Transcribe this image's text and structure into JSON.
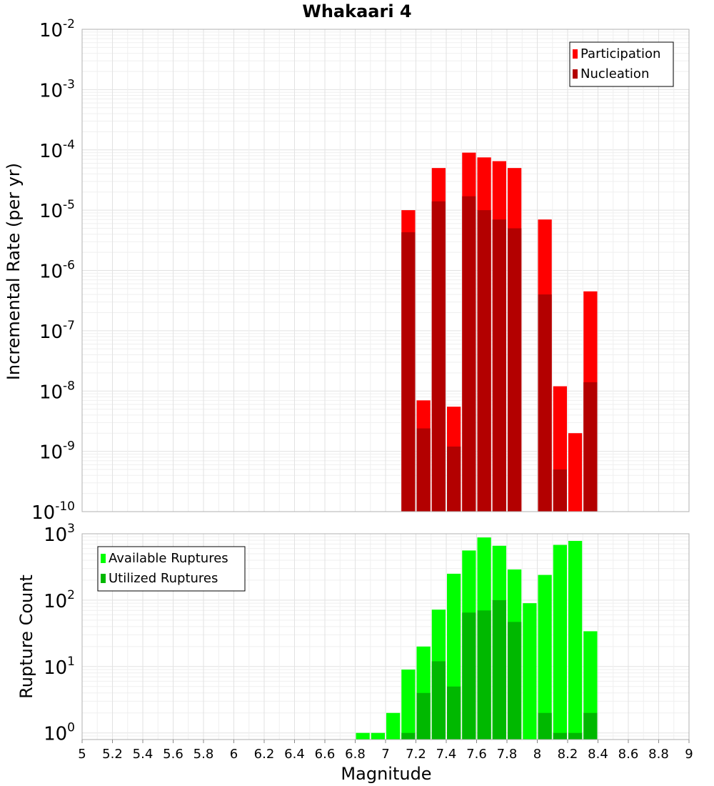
{
  "chart_data": [
    {
      "type": "bar",
      "id": "rate-panel",
      "title": "Whakaari 4",
      "xlabel": "",
      "ylabel": "Incremental Rate (per yr)",
      "yscale": "log",
      "ylim_exp": [
        -10,
        -2
      ],
      "xlim": [
        5,
        9
      ],
      "legend_position": "top-right",
      "colors": {
        "participation": "#ff0000",
        "nucleation": "#b30000"
      },
      "legend": [
        "Participation",
        "Nucleation"
      ],
      "ytick_labels": [
        {
          "base": "10",
          "exp": "-10"
        },
        {
          "base": "10",
          "exp": "-9"
        },
        {
          "base": "10",
          "exp": "-8"
        },
        {
          "base": "10",
          "exp": "-7"
        },
        {
          "base": "10",
          "exp": "-6"
        },
        {
          "base": "10",
          "exp": "-5"
        },
        {
          "base": "10",
          "exp": "-4"
        },
        {
          "base": "10",
          "exp": "-3"
        },
        {
          "base": "10",
          "exp": "-2"
        }
      ],
      "x": [
        7.15,
        7.25,
        7.35,
        7.45,
        7.55,
        7.65,
        7.75,
        7.85,
        8.05,
        8.15,
        8.25,
        8.35
      ],
      "series": [
        {
          "name": "Participation",
          "values": [
            1e-05,
            7e-09,
            5e-05,
            5.5e-09,
            9e-05,
            7.5e-05,
            6.5e-05,
            5e-05,
            7e-06,
            1.2e-08,
            2e-09,
            4.5e-07
          ]
        },
        {
          "name": "Nucleation",
          "values": [
            4.3e-06,
            2.4e-09,
            1.4e-05,
            1.2e-09,
            1.7e-05,
            1e-05,
            7e-06,
            5e-06,
            4e-07,
            5e-10,
            null,
            1.4e-08
          ]
        }
      ]
    },
    {
      "type": "bar",
      "id": "count-panel",
      "title": "",
      "xlabel": "Magnitude",
      "ylabel": "Rupture Count",
      "yscale": "log",
      "ylim_exp": [
        -0.1,
        3
      ],
      "xlim": [
        5,
        9
      ],
      "legend_position": "top-left",
      "colors": {
        "available": "#00ff00",
        "utilized": "#00b800"
      },
      "legend": [
        "Available Ruptures",
        "Utilized Ruptures"
      ],
      "ytick_labels": [
        {
          "base": "10",
          "exp": "0"
        },
        {
          "base": "10",
          "exp": "1"
        },
        {
          "base": "10",
          "exp": "2"
        },
        {
          "base": "10",
          "exp": "3"
        }
      ],
      "xtick_labels": [
        "5",
        "5.2",
        "5.4",
        "5.6",
        "5.8",
        "6",
        "6.2",
        "6.4",
        "6.6",
        "6.8",
        "7",
        "7.2",
        "7.4",
        "7.6",
        "7.8",
        "8",
        "8.2",
        "8.4",
        "8.6",
        "8.8",
        "9"
      ],
      "x": [
        6.85,
        6.95,
        7.05,
        7.15,
        7.25,
        7.35,
        7.45,
        7.55,
        7.65,
        7.75,
        7.85,
        7.95,
        8.05,
        8.15,
        8.25,
        8.35
      ],
      "series": [
        {
          "name": "Available Ruptures",
          "values": [
            1,
            1,
            2,
            9,
            20,
            72,
            250,
            560,
            880,
            660,
            290,
            90,
            240,
            680,
            780,
            34
          ]
        },
        {
          "name": "Utilized Ruptures",
          "values": [
            null,
            null,
            null,
            1,
            4,
            12,
            5,
            65,
            70,
            100,
            47,
            null,
            2,
            1,
            1,
            2
          ]
        }
      ]
    }
  ]
}
